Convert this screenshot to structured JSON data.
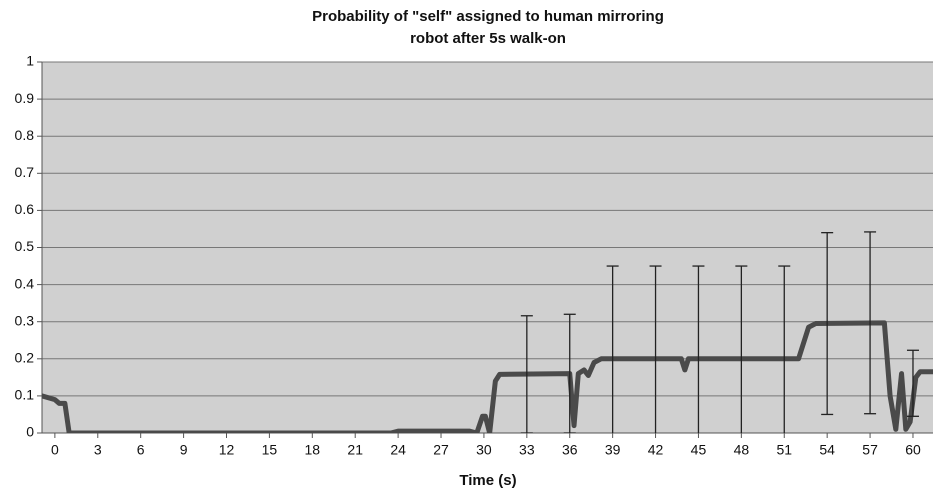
{
  "chart_data": {
    "type": "line",
    "title_lines": [
      "Probability of \"self\" assigned to human mirroring",
      "robot after 5s walk-on"
    ],
    "xlabel": "Time (s)",
    "x": [
      -0.9,
      0,
      0.3,
      0.7,
      1,
      5,
      10,
      15,
      20,
      23.5,
      24,
      29,
      29.5,
      29.9,
      30.1,
      30.4,
      30.8,
      31.1,
      36,
      36.3,
      36.6,
      37,
      37.3,
      37.7,
      38.2,
      43.8,
      44.05,
      44.3,
      52,
      52.7,
      53.2,
      58,
      58.4,
      58.8,
      59.2,
      59.5,
      59.8,
      60.2,
      60.5,
      61.4
    ],
    "series": [
      {
        "color": "#4a4a4a",
        "values": [
          0.1,
          0.09,
          0.08,
          0.08,
          0,
          0,
          0,
          0,
          0,
          0,
          0.005,
          0.005,
          0,
          0.045,
          0.045,
          0,
          0.14,
          0.158,
          0.16,
          0.02,
          0.16,
          0.17,
          0.155,
          0.19,
          0.2,
          0.2,
          0.17,
          0.2,
          0.2,
          0.285,
          0.295,
          0.297,
          0.1,
          0.01,
          0.16,
          0.01,
          0.03,
          0.15,
          0.165,
          0.165
        ]
      }
    ],
    "error_bars": {
      "color": "#222222",
      "x": [
        33,
        36,
        39,
        42,
        45,
        48,
        51,
        54,
        57,
        60
      ],
      "values": [
        0.158,
        0.16,
        0.2,
        0.2,
        0.2,
        0.2,
        0.2,
        0.295,
        0.297,
        0.134
      ],
      "errors": [
        0.158,
        0.16,
        0.25,
        0.25,
        0.25,
        0.25,
        0.25,
        0.245,
        0.245,
        0.089
      ]
    },
    "xlim": [
      -0.9,
      61.4
    ],
    "ylim": [
      0,
      1
    ],
    "xticks": [
      0,
      3,
      6,
      9,
      12,
      15,
      18,
      21,
      24,
      27,
      30,
      33,
      36,
      39,
      42,
      45,
      48,
      51,
      54,
      57,
      60
    ],
    "yticks": [
      0,
      0.1,
      0.2,
      0.3,
      0.4,
      0.5,
      0.6,
      0.7,
      0.8,
      0.9,
      1
    ],
    "grid": true,
    "background": "#d0d0d0"
  }
}
